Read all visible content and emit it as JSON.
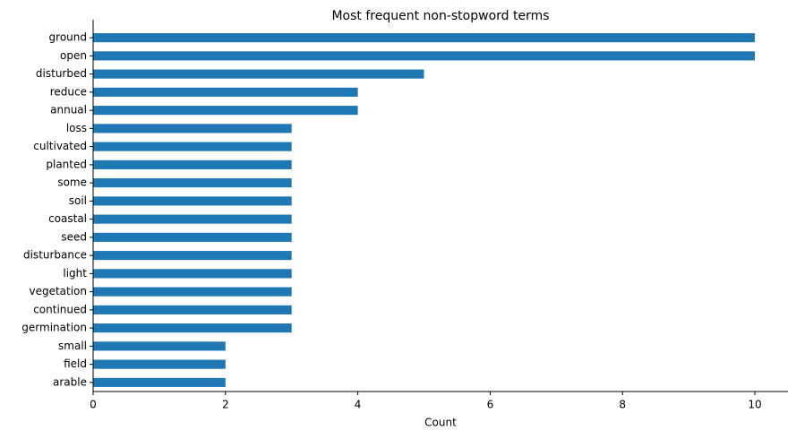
{
  "chart_data": {
    "type": "barh",
    "title": "Most frequent non-stopword terms",
    "xlabel": "Count",
    "categories": [
      "ground",
      "open",
      "disturbed",
      "reduce",
      "annual",
      "loss",
      "cultivated",
      "planted",
      "some",
      "soil",
      "coastal",
      "seed",
      "disturbance",
      "light",
      "vegetation",
      "continued",
      "germination",
      "small",
      "field",
      "arable"
    ],
    "values": [
      10,
      10,
      5,
      4,
      4,
      3,
      3,
      3,
      3,
      3,
      3,
      3,
      3,
      3,
      3,
      3,
      3,
      2,
      2,
      2
    ],
    "color": "#1f77b4",
    "xlim": [
      0,
      10.5
    ],
    "xticks": [
      0,
      2,
      4,
      6,
      8,
      10
    ],
    "grid": false
  }
}
